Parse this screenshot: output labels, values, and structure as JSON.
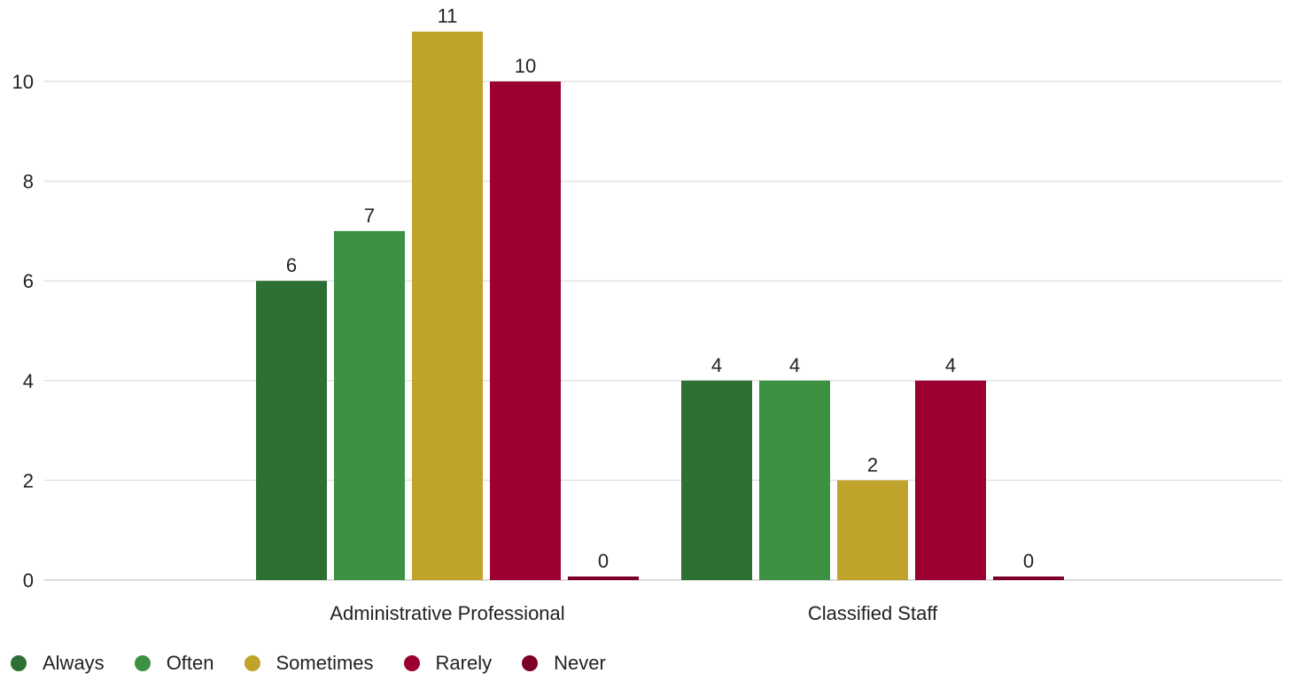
{
  "chart_data": {
    "type": "bar",
    "categories": [
      "Administrative Professional",
      "Classified Staff"
    ],
    "series": [
      {
        "name": "Always",
        "values": [
          6,
          4
        ],
        "color": "#2e6f33"
      },
      {
        "name": "Often",
        "values": [
          7,
          4
        ],
        "color": "#3d9142"
      },
      {
        "name": "Sometimes",
        "values": [
          11,
          2
        ],
        "color": "#bfa32a"
      },
      {
        "name": "Rarely",
        "values": [
          10,
          4
        ],
        "color": "#9b0030"
      },
      {
        "name": "Never",
        "values": [
          0,
          0
        ],
        "color": "#7f0026"
      }
    ],
    "yticks": [
      "0",
      "2",
      "4",
      "6",
      "8",
      "10"
    ],
    "ylim": [
      0,
      11
    ],
    "grid": true,
    "legend_position": "bottom-left",
    "data_labels": true
  }
}
